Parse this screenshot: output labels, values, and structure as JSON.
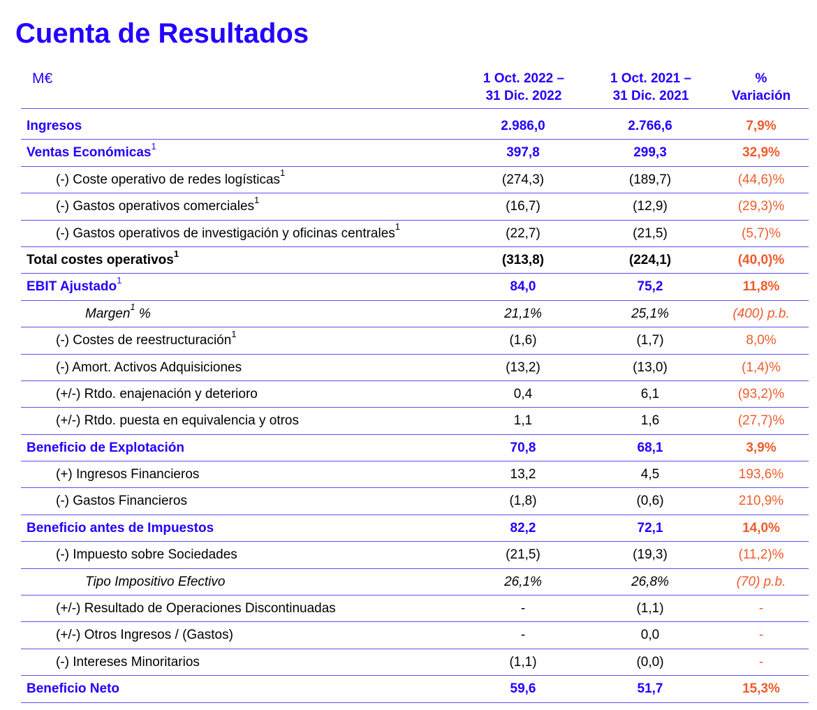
{
  "title": "Cuenta de Resultados",
  "header": {
    "unit": "M€",
    "col1_line1": "1 Oct. 2022 –",
    "col1_line2": "31 Dic. 2022",
    "col2_line1": "1 Oct. 2021 –",
    "col2_line2": "31 Dic. 2021",
    "col3_line1": "%",
    "col3_line2": "Variación"
  },
  "colors": {
    "accent_blue": "#2200ff",
    "variation_orange": "#ee5b2b",
    "rule": "#5b4ff0"
  },
  "rows": [
    {
      "label": "Ingresos",
      "sup": "",
      "v1": "2.986,0",
      "v2": "2.766,6",
      "v3": "7,9%",
      "style": "blue",
      "indent": 0
    },
    {
      "label": "Ventas Económicas",
      "sup": "1",
      "v1": "397,8",
      "v2": "299,3",
      "v3": "32,9%",
      "style": "blue",
      "indent": 0
    },
    {
      "label": "(-) Coste operativo de redes logísticas",
      "sup": "1",
      "v1": "(274,3)",
      "v2": "(189,7)",
      "v3": "(44,6)%",
      "style": "normal",
      "indent": 1
    },
    {
      "label": "(-) Gastos operativos comerciales",
      "sup": "1",
      "v1": "(16,7)",
      "v2": "(12,9)",
      "v3": "(29,3)%",
      "style": "normal",
      "indent": 1
    },
    {
      "label": "(-) Gastos operativos de investigación y oficinas centrales",
      "sup": "1",
      "v1": "(22,7)",
      "v2": "(21,5)",
      "v3": "(5,7)%",
      "style": "normal",
      "indent": 1
    },
    {
      "label": "Total costes operativos",
      "sup": "1",
      "v1": "(313,8)",
      "v2": "(224,1)",
      "v3": "(40,0)%",
      "style": "black",
      "indent": 0
    },
    {
      "label": "EBIT Ajustado",
      "sup": "1",
      "v1": "84,0",
      "v2": "75,2",
      "v3": "11,8%",
      "style": "blue",
      "indent": 0
    },
    {
      "label": "Margen",
      "sup": "1",
      "suffix": " %",
      "v1": "21,1%",
      "v2": "25,1%",
      "v3": "(400) p.b.",
      "style": "italic",
      "indent": 2
    },
    {
      "label": "(-) Costes de reestructuración",
      "sup": "1",
      "v1": "(1,6)",
      "v2": "(1,7)",
      "v3": "8,0%",
      "style": "normal",
      "indent": 1
    },
    {
      "label": "(-) Amort. Activos Adquisiciones",
      "sup": "",
      "v1": "(13,2)",
      "v2": "(13,0)",
      "v3": "(1,4)%",
      "style": "normal",
      "indent": 1
    },
    {
      "label": "(+/-) Rtdo. enajenación y deterioro",
      "sup": "",
      "v1": "0,4",
      "v2": "6,1",
      "v3": "(93,2)%",
      "style": "normal",
      "indent": 1
    },
    {
      "label": "(+/-) Rtdo. puesta en equivalencia y otros",
      "sup": "",
      "v1": "1,1",
      "v2": "1,6",
      "v3": "(27,7)%",
      "style": "normal",
      "indent": 1
    },
    {
      "label": "Beneficio de Explotación",
      "sup": "",
      "v1": "70,8",
      "v2": "68,1",
      "v3": "3,9%",
      "style": "blue",
      "indent": 0
    },
    {
      "label": "(+) Ingresos Financieros",
      "sup": "",
      "v1": "13,2",
      "v2": "4,5",
      "v3": "193,6%",
      "style": "normal",
      "indent": 1
    },
    {
      "label": "(-) Gastos Financieros",
      "sup": "",
      "v1": "(1,8)",
      "v2": "(0,6)",
      "v3": "210,9%",
      "style": "normal",
      "indent": 1
    },
    {
      "label": "Beneficio antes de Impuestos",
      "sup": "",
      "v1": "82,2",
      "v2": "72,1",
      "v3": "14,0%",
      "style": "blue",
      "indent": 0
    },
    {
      "label": "(-) Impuesto sobre Sociedades",
      "sup": "",
      "v1": "(21,5)",
      "v2": "(19,3)",
      "v3": "(11,2)%",
      "style": "normal",
      "indent": 1
    },
    {
      "label": "Tipo Impositivo Efectivo",
      "sup": "",
      "v1": "26,1%",
      "v2": "26,8%",
      "v3": "(70) p.b.",
      "style": "italic",
      "indent": 2
    },
    {
      "label": "(+/-) Resultado de Operaciones Discontinuadas",
      "sup": "",
      "v1": "-",
      "v2": "(1,1)",
      "v3": "-",
      "style": "normal",
      "indent": 1
    },
    {
      "label": "(+/-) Otros Ingresos / (Gastos)",
      "sup": "",
      "v1": "-",
      "v2": "0,0",
      "v3": "-",
      "style": "normal",
      "indent": 1
    },
    {
      "label": "(-) Intereses Minoritarios",
      "sup": "",
      "v1": "(1,1)",
      "v2": "(0,0)",
      "v3": "-",
      "style": "normal",
      "indent": 1
    },
    {
      "label": "Beneficio Neto",
      "sup": "",
      "v1": "59,6",
      "v2": "51,7",
      "v3": "15,3%",
      "style": "blue",
      "indent": 0
    }
  ]
}
